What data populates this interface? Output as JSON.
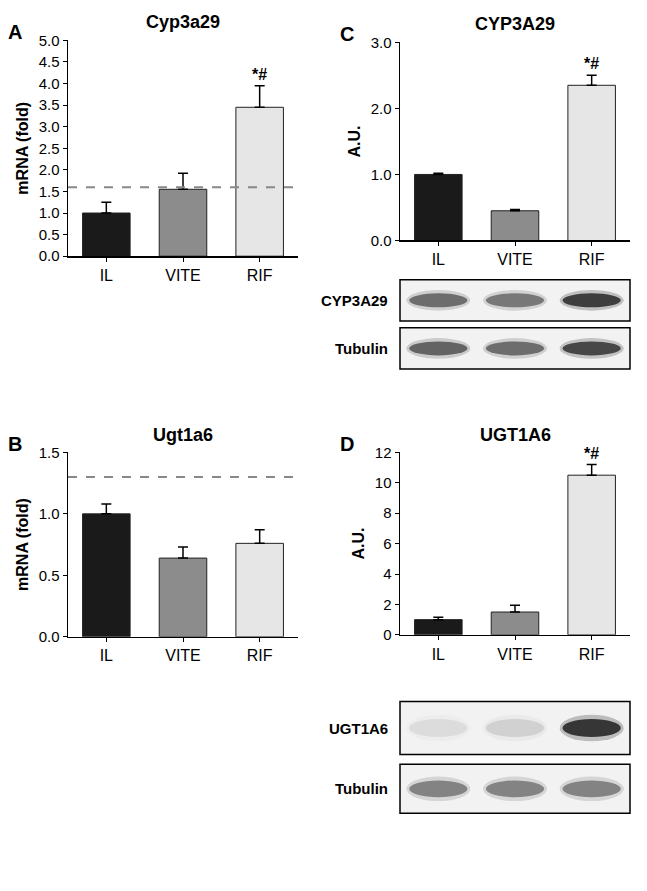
{
  "chart_data": [
    {
      "type": "bar",
      "panel": "A",
      "title": "Cyp3a29",
      "ylabel": "mRNA (fold)",
      "categories": [
        "IL",
        "VITE",
        "RIF"
      ],
      "values": [
        1.0,
        1.55,
        3.45
      ],
      "errors": [
        0.25,
        0.37,
        0.5
      ],
      "colors": [
        "#1a1a1a",
        "#8c8c8c",
        "#e6e6e6"
      ],
      "ylim": [
        0,
        5
      ],
      "yticks": [
        {
          "value": 0,
          "label": "0.0"
        },
        {
          "value": 0.5,
          "label": "0.5"
        },
        {
          "value": 1,
          "label": "1.0"
        },
        {
          "value": 1.5,
          "label": "1.5"
        },
        {
          "value": 2,
          "label": "2.0"
        },
        {
          "value": 2.5,
          "label": "2.5"
        },
        {
          "value": 3,
          "label": "3.0"
        },
        {
          "value": 3.5,
          "label": "3.5"
        },
        {
          "value": 4,
          "label": "4.0"
        },
        {
          "value": 4.5,
          "label": "4.5"
        },
        {
          "value": 5,
          "label": "5.0"
        }
      ],
      "reference_line": 1.6,
      "annotations": [
        {
          "category": "RIF",
          "text": "*#"
        }
      ]
    },
    {
      "type": "bar",
      "panel": "B",
      "title": "Ugt1a6",
      "ylabel": "mRNA (fold)",
      "categories": [
        "IL",
        "VITE",
        "RIF"
      ],
      "values": [
        1.0,
        0.64,
        0.76
      ],
      "errors": [
        0.08,
        0.09,
        0.11
      ],
      "colors": [
        "#1a1a1a",
        "#8c8c8c",
        "#e6e6e6"
      ],
      "ylim": [
        0,
        1.5
      ],
      "yticks": [
        {
          "value": 0,
          "label": "0.0"
        },
        {
          "value": 0.5,
          "label": "0.5"
        },
        {
          "value": 1,
          "label": "1.0"
        },
        {
          "value": 1.5,
          "label": "1.5"
        }
      ],
      "reference_line": 1.3
    },
    {
      "type": "bar",
      "panel": "C",
      "title": "CYP3A29",
      "ylabel": "A.U.",
      "categories": [
        "IL",
        "VITE",
        "RIF"
      ],
      "values": [
        1.0,
        0.45,
        2.35
      ],
      "errors": [
        0.02,
        0.02,
        0.15
      ],
      "colors": [
        "#1a1a1a",
        "#8c8c8c",
        "#e6e6e6"
      ],
      "ylim": [
        0,
        3
      ],
      "yticks": [
        {
          "value": 0,
          "label": "0.0"
        },
        {
          "value": 1,
          "label": "1.0"
        },
        {
          "value": 2,
          "label": "2.0"
        },
        {
          "value": 3,
          "label": "3.0"
        }
      ],
      "annotations": [
        {
          "category": "RIF",
          "text": "*#"
        }
      ],
      "blot_labels": [
        "CYP3A29",
        "Tubulin"
      ]
    },
    {
      "type": "bar",
      "panel": "D",
      "title": "UGT1A6",
      "ylabel": "A.U.",
      "categories": [
        "IL",
        "VITE",
        "RIF"
      ],
      "values": [
        1.0,
        1.5,
        10.5
      ],
      "errors": [
        0.15,
        0.45,
        0.7
      ],
      "colors": [
        "#1a1a1a",
        "#8c8c8c",
        "#e6e6e6"
      ],
      "ylim": [
        0,
        12
      ],
      "yticks": [
        0,
        2,
        4,
        6,
        8,
        10,
        12
      ],
      "annotations": [
        {
          "category": "RIF",
          "text": "*#"
        }
      ],
      "blot_labels": [
        "UGT1A6",
        "Tubulin"
      ]
    }
  ]
}
